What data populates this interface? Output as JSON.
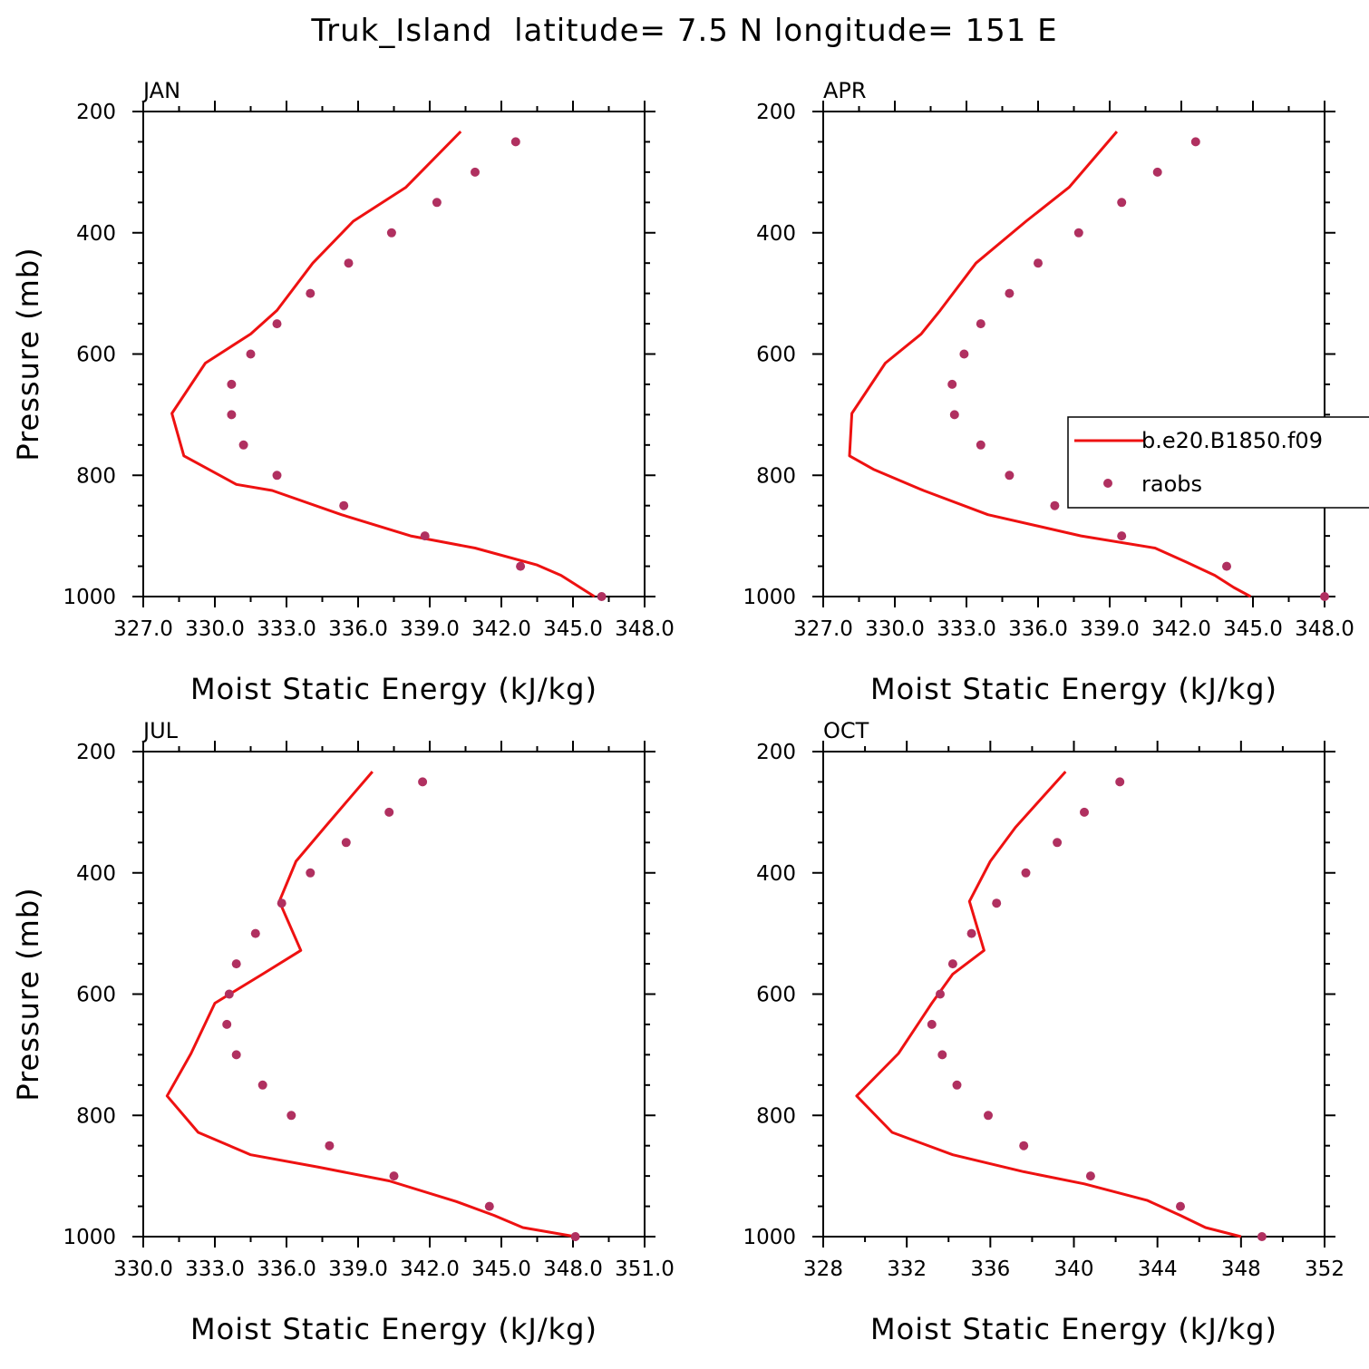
{
  "figure": {
    "title": "Truk_Island  latitude= 7.5 N longitude= 151 E"
  },
  "legend": {
    "model_label": "b.e20.B1850.f09",
    "obs_label": "raobs",
    "model_color": "#ee1111",
    "obs_color": "#b03060"
  },
  "chart_data": [
    {
      "type": "line",
      "panel": "JAN",
      "xlabel": "Moist Static Energy (kJ/kg)",
      "ylabel": "Pressure (mb)",
      "xlim": [
        327,
        348
      ],
      "ylim": [
        1000,
        200
      ],
      "xtick_labels": [
        "327.0",
        "330.0",
        "333.0",
        "336.0",
        "339.0",
        "342.0",
        "345.0",
        "348.0"
      ],
      "ytick_labels": [
        "200",
        "400",
        "600",
        "800",
        "1000"
      ],
      "series": [
        {
          "name": "b.e20.B1850.f09",
          "kind": "line",
          "points": [
            [
              340.3,
              233
            ],
            [
              338.0,
              325
            ],
            [
              335.8,
              381
            ],
            [
              334.1,
              450
            ],
            [
              332.6,
              528
            ],
            [
              331.5,
              567
            ],
            [
              329.6,
              615
            ],
            [
              328.2,
              698
            ],
            [
              328.7,
              768
            ],
            [
              330.9,
              815
            ],
            [
              332.4,
              825
            ],
            [
              335.3,
              865
            ],
            [
              338.2,
              900
            ],
            [
              340.9,
              920
            ],
            [
              343.5,
              948
            ],
            [
              344.5,
              965
            ],
            [
              345.3,
              985
            ],
            [
              345.9,
              1000
            ]
          ]
        },
        {
          "name": "raobs",
          "kind": "scatter",
          "points": [
            [
              342.6,
              250
            ],
            [
              340.9,
              300
            ],
            [
              339.3,
              350
            ],
            [
              337.4,
              400
            ],
            [
              335.6,
              450
            ],
            [
              334.0,
              500
            ],
            [
              332.6,
              550
            ],
            [
              331.5,
              600
            ],
            [
              330.7,
              650
            ],
            [
              330.7,
              700
            ],
            [
              331.2,
              750
            ],
            [
              332.6,
              800
            ],
            [
              335.4,
              850
            ],
            [
              338.8,
              900
            ],
            [
              342.8,
              950
            ],
            [
              346.2,
              1000
            ]
          ]
        }
      ]
    },
    {
      "type": "line",
      "panel": "APR",
      "xlabel": "Moist Static Energy (kJ/kg)",
      "ylabel": "Pressure (mb)",
      "xlim": [
        327,
        348
      ],
      "ylim": [
        1000,
        200
      ],
      "xtick_labels": [
        "327.0",
        "330.0",
        "333.0",
        "336.0",
        "339.0",
        "342.0",
        "345.0",
        "348.0"
      ],
      "ytick_labels": [
        "200",
        "400",
        "600",
        "800",
        "1000"
      ],
      "series": [
        {
          "name": "b.e20.B1850.f09",
          "kind": "line",
          "points": [
            [
              339.3,
              233
            ],
            [
              337.3,
              325
            ],
            [
              335.5,
              381
            ],
            [
              333.4,
              450
            ],
            [
              331.9,
              528
            ],
            [
              331.1,
              567
            ],
            [
              329.6,
              615
            ],
            [
              328.2,
              698
            ],
            [
              328.1,
              768
            ],
            [
              329.1,
              790
            ],
            [
              331.2,
              825
            ],
            [
              333.9,
              865
            ],
            [
              337.8,
              900
            ],
            [
              340.9,
              920
            ],
            [
              342.2,
              943
            ],
            [
              343.4,
              965
            ],
            [
              344.2,
              985
            ],
            [
              344.9,
              1000
            ]
          ]
        },
        {
          "name": "raobs",
          "kind": "scatter",
          "points": [
            [
              342.6,
              250
            ],
            [
              341.0,
              300
            ],
            [
              339.5,
              350
            ],
            [
              337.7,
              400
            ],
            [
              336.0,
              450
            ],
            [
              334.8,
              500
            ],
            [
              333.6,
              550
            ],
            [
              332.9,
              600
            ],
            [
              332.4,
              650
            ],
            [
              332.5,
              700
            ],
            [
              333.6,
              750
            ],
            [
              334.8,
              800
            ],
            [
              336.7,
              850
            ],
            [
              339.5,
              900
            ],
            [
              343.9,
              950
            ],
            [
              348.0,
              1000
            ]
          ]
        }
      ]
    },
    {
      "type": "line",
      "panel": "JUL",
      "xlabel": "Moist Static Energy (kJ/kg)",
      "ylabel": "Pressure (mb)",
      "xlim": [
        330,
        351
      ],
      "ylim": [
        1000,
        200
      ],
      "xtick_labels": [
        "330.0",
        "333.0",
        "336.0",
        "339.0",
        "342.0",
        "345.0",
        "348.0",
        "351.0"
      ],
      "ytick_labels": [
        "200",
        "400",
        "600",
        "800",
        "1000"
      ],
      "series": [
        {
          "name": "b.e20.B1850.f09",
          "kind": "line",
          "points": [
            [
              339.6,
              233
            ],
            [
              337.6,
              325
            ],
            [
              336.4,
              381
            ],
            [
              335.7,
              447
            ],
            [
              336.6,
              528
            ],
            [
              335.0,
              567
            ],
            [
              333.0,
              615
            ],
            [
              332.0,
              698
            ],
            [
              331.0,
              768
            ],
            [
              332.3,
              828
            ],
            [
              334.5,
              865
            ],
            [
              337.3,
              885
            ],
            [
              340.3,
              908
            ],
            [
              343.1,
              942
            ],
            [
              344.7,
              965
            ],
            [
              345.9,
              985
            ],
            [
              348.1,
              1000
            ]
          ]
        },
        {
          "name": "raobs",
          "kind": "scatter",
          "points": [
            [
              341.7,
              250
            ],
            [
              340.3,
              300
            ],
            [
              338.5,
              350
            ],
            [
              337.0,
              400
            ],
            [
              335.8,
              450
            ],
            [
              334.7,
              500
            ],
            [
              333.9,
              550
            ],
            [
              333.6,
              600
            ],
            [
              333.5,
              650
            ],
            [
              333.9,
              700
            ],
            [
              335.0,
              750
            ],
            [
              336.2,
              800
            ],
            [
              337.8,
              850
            ],
            [
              340.5,
              900
            ],
            [
              344.5,
              950
            ],
            [
              348.1,
              1000
            ]
          ]
        }
      ]
    },
    {
      "type": "line",
      "panel": "OCT",
      "xlabel": "Moist Static Energy (kJ/kg)",
      "ylabel": "Pressure (mb)",
      "xlim": [
        328,
        352
      ],
      "ylim": [
        1000,
        200
      ],
      "xtick_labels": [
        "328",
        "332",
        "336",
        "340",
        "344",
        "348",
        "352"
      ],
      "ytick_labels": [
        "200",
        "400",
        "600",
        "800",
        "1000"
      ],
      "series": [
        {
          "name": "b.e20.B1850.f09",
          "kind": "line",
          "points": [
            [
              339.6,
              233
            ],
            [
              337.2,
              325
            ],
            [
              336.0,
              381
            ],
            [
              335.0,
              447
            ],
            [
              335.7,
              528
            ],
            [
              334.2,
              567
            ],
            [
              333.2,
              615
            ],
            [
              331.6,
              698
            ],
            [
              329.6,
              768
            ],
            [
              331.3,
              828
            ],
            [
              334.2,
              865
            ],
            [
              337.6,
              893
            ],
            [
              340.5,
              913
            ],
            [
              343.5,
              940
            ],
            [
              345.1,
              965
            ],
            [
              346.3,
              985
            ],
            [
              348.0,
              1000
            ]
          ]
        },
        {
          "name": "raobs",
          "kind": "scatter",
          "points": [
            [
              342.2,
              250
            ],
            [
              340.5,
              300
            ],
            [
              339.2,
              350
            ],
            [
              337.7,
              400
            ],
            [
              336.3,
              450
            ],
            [
              335.1,
              500
            ],
            [
              334.2,
              550
            ],
            [
              333.6,
              600
            ],
            [
              333.2,
              650
            ],
            [
              333.7,
              700
            ],
            [
              334.4,
              750
            ],
            [
              335.9,
              800
            ],
            [
              337.6,
              850
            ],
            [
              340.8,
              900
            ],
            [
              345.1,
              950
            ],
            [
              349.0,
              1000
            ]
          ]
        }
      ]
    }
  ]
}
